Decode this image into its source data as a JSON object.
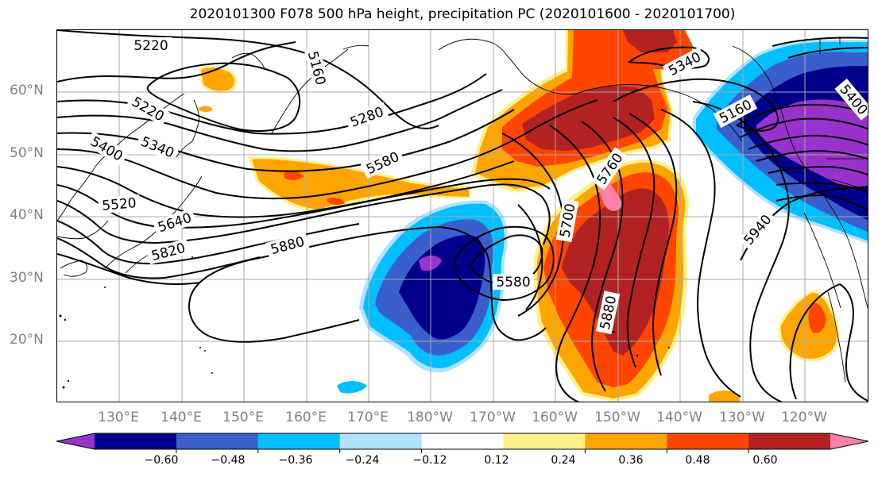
{
  "title": "2020101300 F078 500 hPa height, precipitation PC (2020101600 - 2020101700)",
  "lat_labels": [
    "60°N",
    "50°N",
    "40°N",
    "30°N",
    "20°N"
  ],
  "lon_labels": [
    "130°E",
    "140°E",
    "150°E",
    "160°E",
    "170°E",
    "180°W",
    "170°W",
    "160°W",
    "150°W",
    "140°W",
    "130°W",
    "120°W"
  ],
  "contour_labels": [
    "5220",
    "5160",
    "5340",
    "5220",
    "5280",
    "5400",
    "5340",
    "5580",
    "5520",
    "5760",
    "5640",
    "5700",
    "5400",
    "5820",
    "5880",
    "5940",
    "5580",
    "5880",
    "5160"
  ],
  "colorbar": {
    "colors": [
      "#9932CC",
      "#00008B",
      "#3A5FCD",
      "#00BFFF",
      "#B0E2FF",
      "#FFFFFF",
      "#FFF08C",
      "#FFA500",
      "#FF4500",
      "#B22222",
      "#FF82AB"
    ],
    "tick_labels": [
      "−0.60",
      "−0.48",
      "−0.36",
      "−0.24",
      "−0.12",
      "0.12",
      "0.24",
      "0.36",
      "0.48",
      "0.60"
    ]
  }
}
